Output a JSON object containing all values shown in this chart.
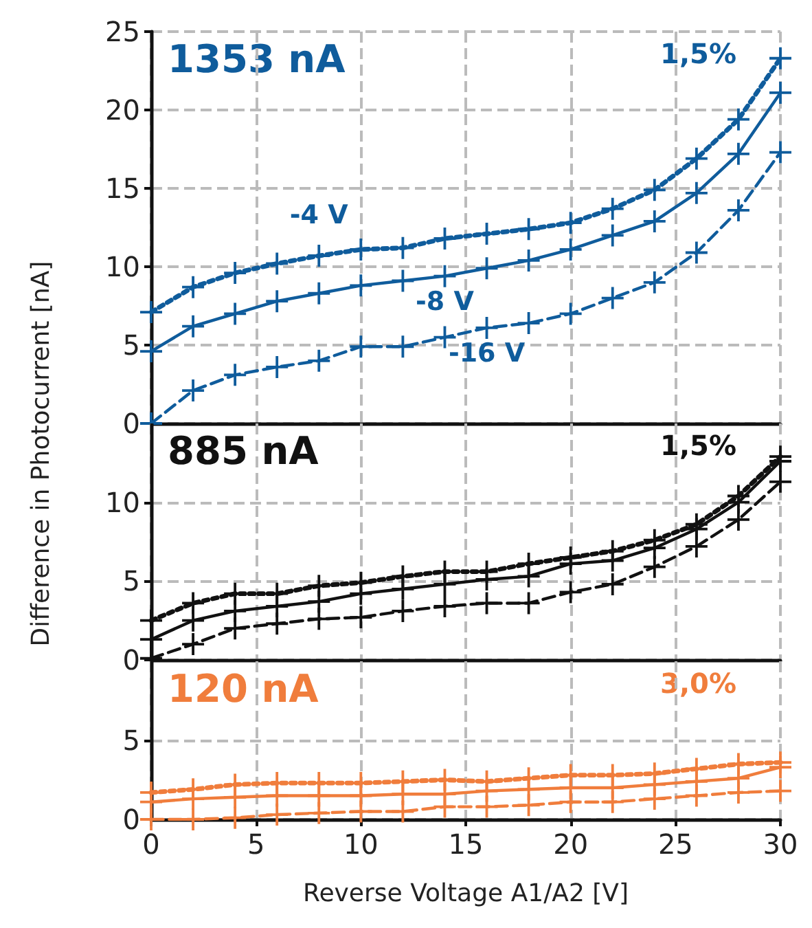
{
  "chart_data": [
    {
      "type": "line",
      "annotations": [
        "1353 nA",
        "1,5%"
      ],
      "x": [
        0,
        2,
        4,
        6,
        8,
        10,
        12,
        14,
        16,
        18,
        20,
        22,
        24,
        26,
        28,
        30
      ],
      "xlim": [
        0,
        30
      ],
      "xticks": [
        0,
        5,
        10,
        15,
        20,
        25,
        30
      ],
      "ylim": [
        0,
        25
      ],
      "yticks": [
        0,
        5,
        10,
        15,
        20,
        25
      ],
      "grid": true,
      "marker": "cross",
      "tick_labels": "y",
      "series": [
        {
          "name": "-4 V",
          "color": "#0f5c9c",
          "line_style": "dotted",
          "values": [
            7.1,
            8.7,
            9.6,
            10.2,
            10.7,
            11.1,
            11.2,
            11.8,
            12.1,
            12.4,
            12.8,
            13.7,
            14.9,
            16.9,
            19.4,
            23.3
          ]
        },
        {
          "name": "-8 V",
          "color": "#0f5c9c",
          "line_style": "solid",
          "values": [
            4.6,
            6.2,
            7.0,
            7.8,
            8.3,
            8.8,
            9.1,
            9.4,
            9.9,
            10.4,
            11.1,
            12.0,
            12.9,
            14.7,
            17.2,
            21.1
          ]
        },
        {
          "name": "-16 V",
          "color": "#0f5c9c",
          "line_style": "dashed",
          "values": [
            0,
            2.1,
            3.1,
            3.6,
            4.0,
            4.9,
            4.9,
            5.5,
            6.1,
            6.4,
            7.0,
            8.0,
            9.0,
            10.9,
            13.6,
            17.3
          ]
        }
      ]
    },
    {
      "type": "line",
      "ylabel": "Difference in Photocurrent [nA]",
      "annotations": [
        "885 nA",
        "1,5%"
      ],
      "x": [
        0,
        2,
        4,
        6,
        8,
        10,
        12,
        14,
        16,
        18,
        20,
        22,
        24,
        26,
        28,
        30
      ],
      "xlim": [
        0,
        30
      ],
      "xticks": [
        0,
        5,
        10,
        15,
        20,
        25,
        30
      ],
      "ylim": [
        0,
        15
      ],
      "yticks": [
        0,
        5,
        10
      ],
      "grid": true,
      "marker": "cross",
      "tick_labels": "y",
      "series": [
        {
          "color": "#111111",
          "line_style": "dotted",
          "values": [
            2.5,
            3.6,
            4.2,
            4.2,
            4.7,
            4.9,
            5.3,
            5.6,
            5.6,
            6.1,
            6.5,
            6.9,
            7.6,
            8.6,
            10.4,
            12.9
          ]
        },
        {
          "color": "#111111",
          "line_style": "solid",
          "values": [
            1.3,
            2.5,
            3.1,
            3.4,
            3.7,
            4.2,
            4.5,
            4.8,
            5.1,
            5.3,
            6.1,
            6.3,
            7.1,
            8.3,
            10.0,
            12.6
          ]
        },
        {
          "color": "#111111",
          "line_style": "dashed",
          "values": [
            0.1,
            1.0,
            2.0,
            2.3,
            2.6,
            2.7,
            3.1,
            3.4,
            3.6,
            3.6,
            4.3,
            4.8,
            5.9,
            7.2,
            8.9,
            11.3
          ]
        }
      ]
    },
    {
      "type": "line",
      "xlabel": "Reverse Voltage A1/A2 [V]",
      "annotations": [
        "120 nA",
        "3,0%"
      ],
      "x": [
        0,
        2,
        4,
        6,
        8,
        10,
        12,
        14,
        16,
        18,
        20,
        22,
        24,
        26,
        28,
        30
      ],
      "xlim": [
        0,
        30
      ],
      "xticks": [
        0,
        5,
        10,
        15,
        20,
        25,
        30
      ],
      "ylim": [
        0,
        10
      ],
      "yticks": [
        0,
        5
      ],
      "grid": true,
      "marker": "cross",
      "series": [
        {
          "color": "#f07d3c",
          "line_style": "dotted",
          "values": [
            1.7,
            1.9,
            2.2,
            2.3,
            2.3,
            2.3,
            2.4,
            2.5,
            2.4,
            2.6,
            2.8,
            2.8,
            2.9,
            3.2,
            3.5,
            3.6
          ]
        },
        {
          "color": "#f07d3c",
          "line_style": "solid",
          "values": [
            1.1,
            1.3,
            1.4,
            1.5,
            1.5,
            1.5,
            1.6,
            1.6,
            1.8,
            1.9,
            2.0,
            2.0,
            2.2,
            2.4,
            2.6,
            3.3
          ]
        },
        {
          "color": "#f07d3c",
          "line_style": "dashed",
          "values": [
            0,
            0,
            0.1,
            0.3,
            0.4,
            0.5,
            0.5,
            0.8,
            0.8,
            0.9,
            1.1,
            1.1,
            1.3,
            1.5,
            1.7,
            1.8
          ]
        }
      ]
    }
  ]
}
